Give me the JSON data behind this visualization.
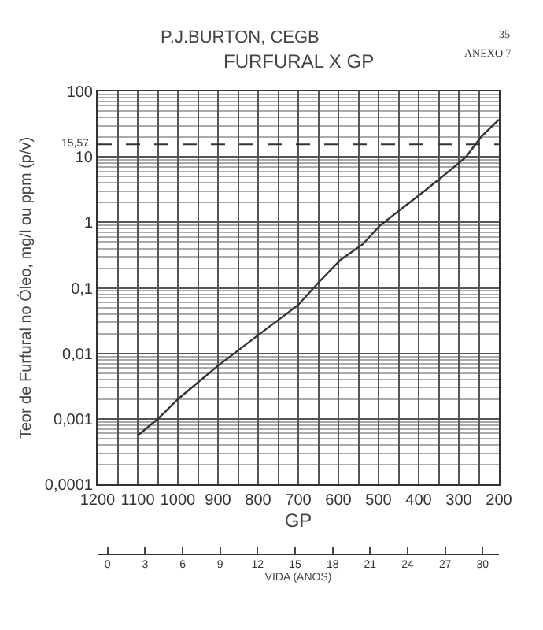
{
  "chart_data": {
    "type": "line",
    "title": "FURFURAL X GP",
    "subtitle": "P.J.BURTON, CEGB",
    "annotations": [
      "35",
      "ANEXO 7"
    ],
    "xlabel": "GP",
    "ylabel": "Teor de Furfural no Óleo, mg/l ou ppm (p/v)",
    "x2label": "VIDA (ANOS)",
    "x": [
      1100,
      1050,
      1000,
      900,
      800,
      700,
      650,
      594,
      540,
      497,
      386,
      331,
      282,
      245,
      200
    ],
    "series": [
      {
        "color": "#333333",
        "values": [
          0.00056,
          0.001,
          0.002,
          0.0065,
          0.019,
          0.055,
          0.12,
          0.27,
          0.46,
          0.89,
          3.0,
          5.6,
          10,
          20,
          37
        ]
      }
    ],
    "log": "y",
    "grid": true,
    "marker": "none",
    "line_style": "solid",
    "xlim": [
      1200,
      200
    ],
    "xticks": [
      1200,
      {
        "value": 1150,
        "label": null
      },
      1100,
      {
        "value": 1050,
        "label": null
      },
      1000,
      {
        "value": 950,
        "label": null
      },
      900,
      {
        "value": 850,
        "label": null
      },
      800,
      {
        "value": 750,
        "label": null
      },
      700,
      {
        "value": 650,
        "label": null
      },
      600,
      {
        "value": 550,
        "label": null
      },
      500,
      {
        "value": 450,
        "label": null
      },
      400,
      {
        "value": 350,
        "label": null
      },
      300,
      {
        "value": 250,
        "label": null
      },
      200
    ],
    "ylim": [
      0.0001,
      100
    ],
    "yticks": [
      {
        "value": 0.0001,
        "label": "0,0001"
      },
      {
        "value": 0.001,
        "label": "0,001"
      },
      {
        "value": 0.01,
        "label": "0,01"
      },
      {
        "value": 0.1,
        "label": "0,1"
      },
      1,
      10,
      100
    ],
    "x2lim": [
      -0.8,
      31.3
    ],
    "x2ticks": [
      0,
      3,
      6,
      9,
      12,
      15,
      18,
      21,
      24,
      27,
      30
    ],
    "ref_lines": [
      {
        "axis": "y",
        "value": 15.57,
        "label": "15,57",
        "line_style": "dashed",
        "color": "#333333"
      }
    ]
  }
}
